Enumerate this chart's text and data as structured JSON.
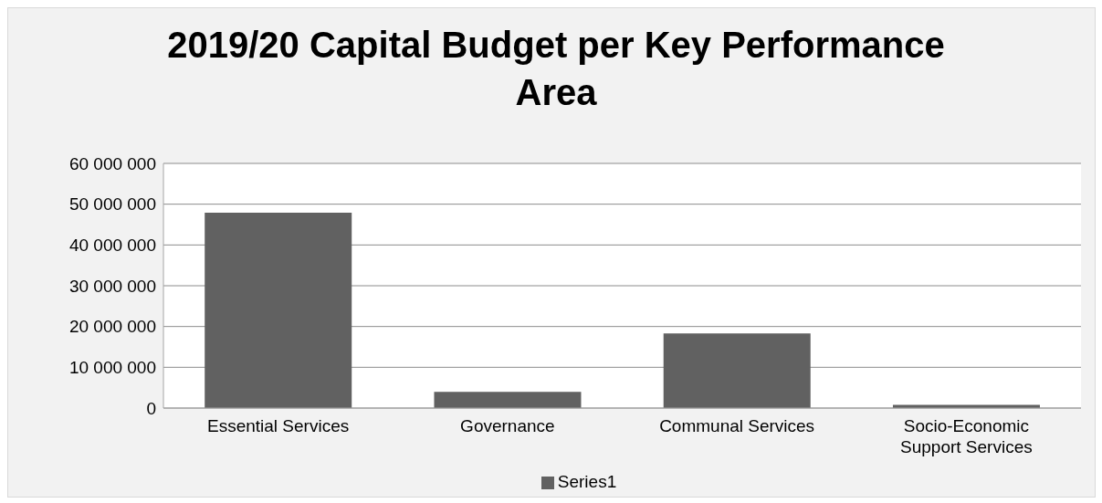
{
  "chart_data": {
    "type": "bar",
    "title": "2019/20 Capital Budget per Key Performance Area",
    "categories": [
      "Essential Services",
      "Governance",
      "Communal Services",
      "Socio-Economic Support Services"
    ],
    "series": [
      {
        "name": "Series1",
        "color": "#616161",
        "values": [
          47900000,
          4000000,
          18300000,
          800000
        ]
      }
    ],
    "ylim": [
      0,
      60000000
    ],
    "yticks": [
      {
        "value": 0,
        "label": "0"
      },
      {
        "value": 10000000,
        "label": "10 000 000"
      },
      {
        "value": 20000000,
        "label": "20 000 000"
      },
      {
        "value": 30000000,
        "label": "30 000 000"
      },
      {
        "value": 40000000,
        "label": "40 000 000"
      },
      {
        "value": 50000000,
        "label": "50 000 000"
      },
      {
        "value": 60000000,
        "label": "60 000 000"
      }
    ],
    "grid": "y",
    "legend": "bottom"
  }
}
